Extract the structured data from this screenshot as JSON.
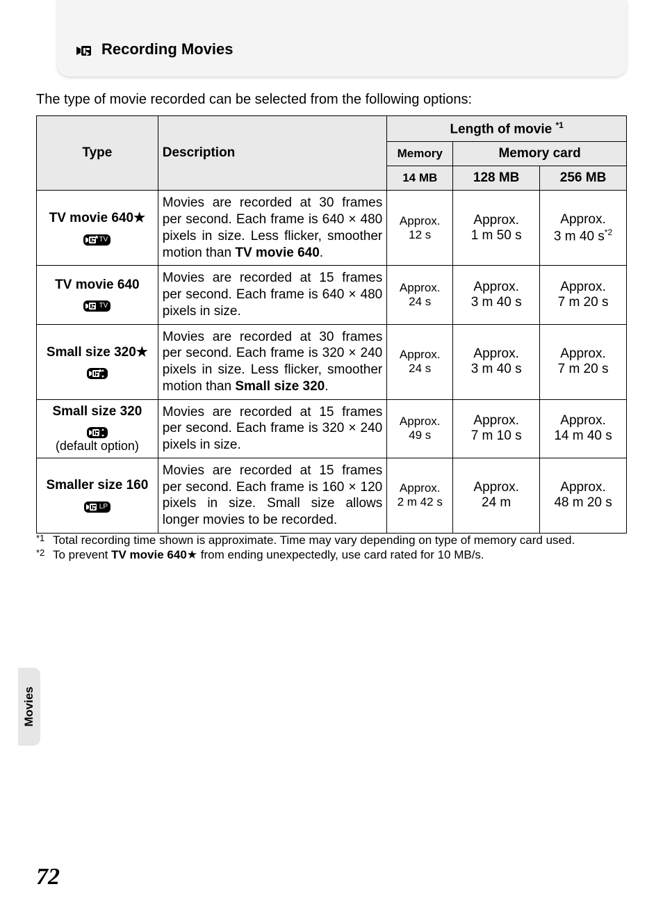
{
  "header": {
    "title": "Recording Movies"
  },
  "intro": "The type of movie recorded can be selected from the following options:",
  "table": {
    "headers": {
      "type": "Type",
      "description": "Description",
      "length": "Length of movie ",
      "length_sup": "*1",
      "memory": "Memory",
      "memory_card": "Memory card",
      "mem_14": "14 MB",
      "mc_128": "128 MB",
      "mc_256": "256 MB"
    },
    "rows": [
      {
        "type_name": "TV movie 640",
        "type_star": "★",
        "icon_tag": "TV",
        "icon_star": true,
        "desc_pre": "Movies are recorded at 30 frames per second. Each frame is 640 × 480 pixels in size. Less flicker, smoother motion than ",
        "desc_bold": "TV movie 640",
        "desc_post": ".",
        "mem_l1": "Approx.",
        "mem_l2": "12 s",
        "mc1_l1": "Approx.",
        "mc1_l2": "1 m 50 s",
        "mc2_l1": "Approx.",
        "mc2_l2": "3 m 40 s",
        "mc2_sup": "*2"
      },
      {
        "type_name": "TV movie 640",
        "icon_tag": "TV",
        "desc_pre": "Movies are recorded at 15 frames per second. Each frame is 640 × 480 pixels in size.",
        "mem_l1": "Approx.",
        "mem_l2": "24 s",
        "mc1_l1": "Approx.",
        "mc1_l2": "3 m 40 s",
        "mc2_l1": "Approx.",
        "mc2_l2": "7 m 20 s"
      },
      {
        "type_name": "Small size 320",
        "type_star": "★",
        "icon_tag": "",
        "icon_star": true,
        "icon_small_arrows": true,
        "desc_pre": "Movies are recorded at 30 frames per second. Each frame is 320 × 240 pixels in size. Less flicker, smoother motion than ",
        "desc_bold": "Small size 320",
        "desc_post": ".",
        "mem_l1": "Approx.",
        "mem_l2": "24 s",
        "mc1_l1": "Approx.",
        "mc1_l2": "3 m 40 s",
        "mc2_l1": "Approx.",
        "mc2_l2": "7 m 20 s"
      },
      {
        "type_name": "Small size 320",
        "type_sub": "(default option)",
        "icon_tag": "",
        "icon_small_arrows": true,
        "desc_pre": "Movies are recorded at 15 frames per second. Each frame is 320 × 240 pixels in size.",
        "mem_l1": "Approx.",
        "mem_l2": "49 s",
        "mc1_l1": "Approx.",
        "mc1_l2": "7 m 10 s",
        "mc2_l1": "Approx.",
        "mc2_l2": "14 m 40 s"
      },
      {
        "type_name": "Smaller size 160",
        "icon_tag": "LP",
        "desc_pre": "Movies are recorded at 15 frames per second. Each frame is 160 × 120 pixels in size. Small size allows longer movies to be recorded.",
        "mem_l1": "Approx.",
        "mem_l2": "2 m 42 s",
        "mc1_l1": "Approx.",
        "mc1_l2": "24 m",
        "mc2_l1": "Approx.",
        "mc2_l2": "48 m 20 s"
      }
    ]
  },
  "footnotes": {
    "f1_marker": "*1",
    "f1": "Total recording time shown is approximate. Time may vary depending on type of memory card used.",
    "f2_marker": "*2",
    "f2_pre": "To prevent ",
    "f2_bold": "TV movie 640",
    "f2_star": "★",
    "f2_post": " from ending unexpectedly, use card rated for 10 MB/s."
  },
  "sidebar": {
    "label": "Movies"
  },
  "page_number": "72",
  "colors": {
    "header_bg": "#f4f4f4",
    "thead_bg": "#e9e9e9",
    "border": "#000000",
    "text": "#000000",
    "sidebar_bg": "#e6e6e6"
  }
}
